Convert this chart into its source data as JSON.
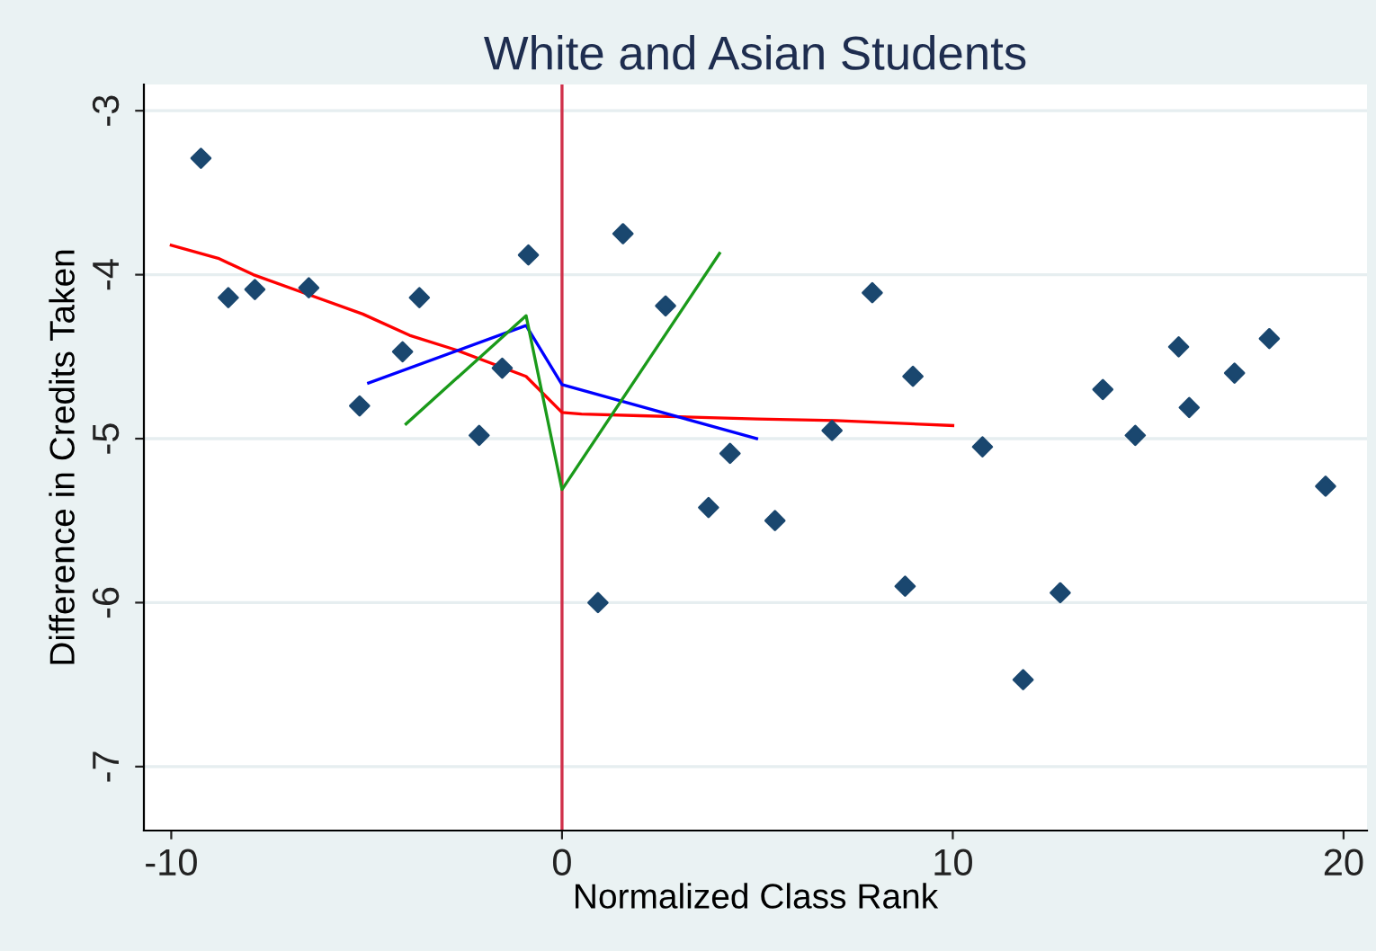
{
  "chart_data": {
    "type": "scatter",
    "title": "White and Asian Students",
    "xlabel": "Normalized Class Rank",
    "ylabel": "Difference in Credits Taken",
    "xlim": [
      -10.7,
      20.6
    ],
    "ylim": [
      -7.39,
      -2.84
    ],
    "xticks": [
      -10,
      0,
      10,
      20
    ],
    "yticks": [
      -7,
      -6,
      -5,
      -4,
      -3
    ],
    "grid": "y",
    "legend": false,
    "series": [
      {
        "marker": "diamond",
        "color": "#1a476f",
        "x": [
          -9.24,
          -8.54,
          -7.86,
          -6.48,
          -5.18,
          -4.08,
          -3.65,
          -2.12,
          -1.53,
          -0.86,
          0.92,
          1.56,
          2.65,
          3.75,
          4.3,
          5.45,
          6.91,
          7.94,
          8.78,
          8.98,
          10.76,
          11.8,
          12.75,
          13.84,
          14.67,
          15.78,
          16.05,
          17.21,
          18.1,
          19.54
        ],
        "values": [
          -3.29,
          -4.14,
          -4.09,
          -4.08,
          -4.8,
          -4.47,
          -4.14,
          -4.98,
          -4.57,
          -3.88,
          -6.0,
          -3.75,
          -4.19,
          -5.42,
          -5.09,
          -5.5,
          -4.95,
          -4.11,
          -5.9,
          -4.62,
          -5.05,
          -6.47,
          -5.94,
          -4.7,
          -4.98,
          -4.44,
          -4.81,
          -4.6,
          -4.39,
          -5.29
        ]
      },
      {
        "type": "line",
        "color": "#ff0000",
        "x": [
          -10,
          -8.8,
          -7.9,
          -6.5,
          -5.1,
          -3.9,
          -2.7,
          -0.92,
          0,
          0.5,
          2,
          5,
          7,
          10
        ],
        "values": [
          -3.82,
          -3.9,
          -4.0,
          -4.12,
          -4.24,
          -4.37,
          -4.46,
          -4.62,
          -4.84,
          -4.85,
          -4.86,
          -4.88,
          -4.89,
          -4.92
        ]
      },
      {
        "type": "line",
        "color": "#0000ff",
        "x": [
          -4.95,
          -0.92,
          0,
          4.98
        ],
        "values": [
          -4.66,
          -4.31,
          -4.67,
          -5.0
        ]
      },
      {
        "type": "line",
        "color": "#1a9a1a",
        "x": [
          -3.99,
          -0.92,
          0,
          4.03
        ],
        "values": [
          -4.91,
          -4.25,
          -5.31,
          -3.87
        ]
      }
    ],
    "ref_lines": [
      {
        "axis": "x",
        "value": 0,
        "color": "#d0304a",
        "line_style": "solid"
      }
    ]
  }
}
